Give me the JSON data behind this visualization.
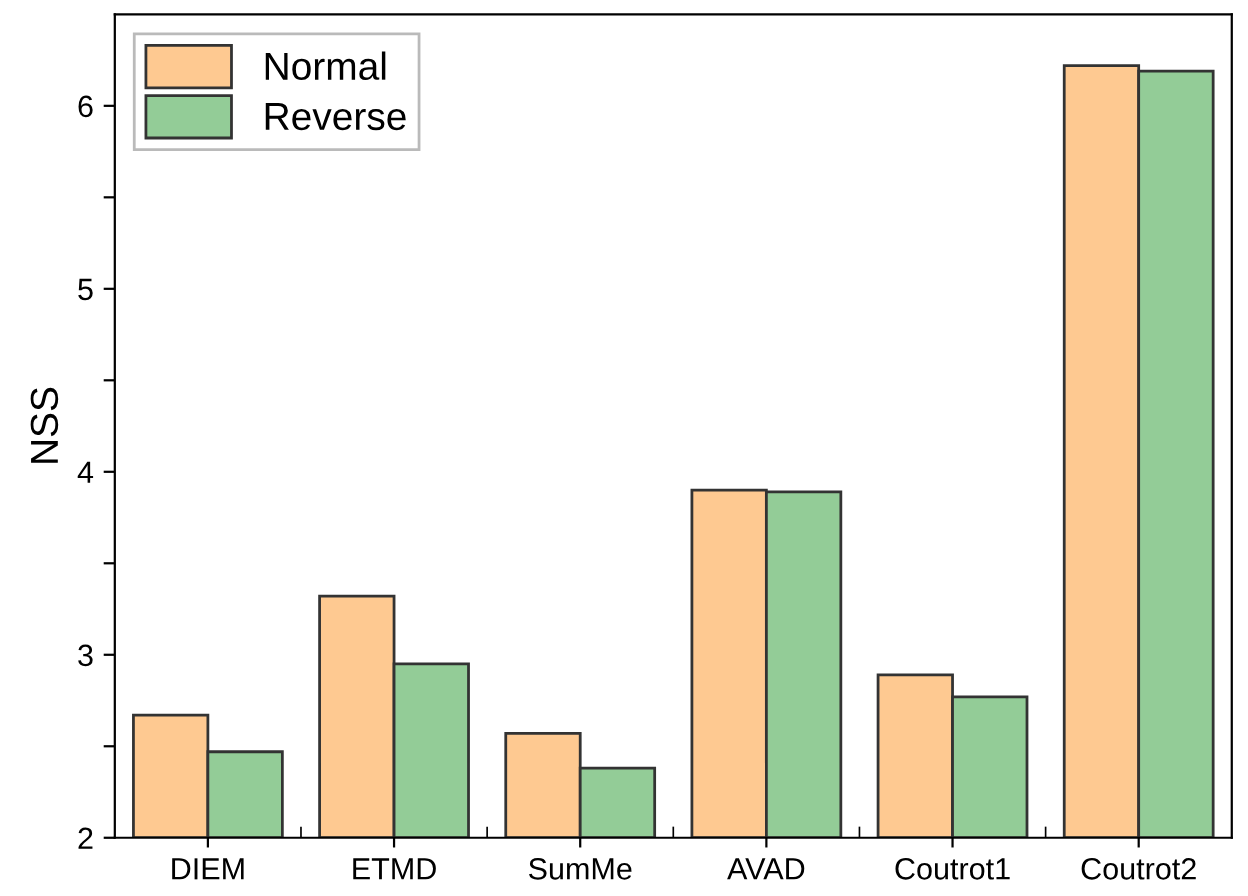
{
  "chart_data": {
    "type": "bar",
    "ylabel": "NSS",
    "categories": [
      "DIEM",
      "ETMD",
      "SumMe",
      "AVAD",
      "Coutrot1",
      "Coutrot2"
    ],
    "series": [
      {
        "name": "Normal",
        "color": "#fec991",
        "values": [
          2.67,
          3.32,
          2.57,
          3.9,
          2.89,
          6.22
        ]
      },
      {
        "name": "Reverse",
        "color": "#93cc97",
        "values": [
          2.47,
          2.95,
          2.38,
          3.89,
          2.77,
          6.19
        ]
      }
    ],
    "ylim": [
      2,
      6.5
    ],
    "yticks": [
      2,
      {
        "value": 2.5,
        "label": null
      },
      3,
      {
        "value": 3.5,
        "label": null
      },
      4,
      {
        "value": 4.5,
        "label": null
      },
      5,
      {
        "value": 5.5,
        "label": null
      },
      6
    ],
    "legend": "top left",
    "grid": false
  }
}
